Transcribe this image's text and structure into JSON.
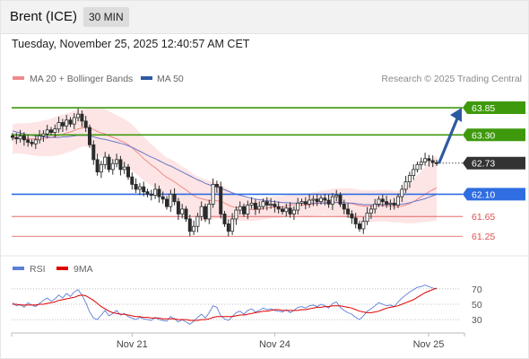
{
  "header": {
    "instrument": "Brent (ICE)",
    "period": "30 MIN"
  },
  "timestamp": "Tuesday, November 25, 2025 12:40:57 AM CET",
  "copyright": "Research © 2025 Trading Central",
  "colors": {
    "support_resistance_green": "#3e9a0c",
    "support_blue": "#2f6de0",
    "level_red": "#e05050",
    "price_tag": "#333333",
    "arrow": "#2e5aa0",
    "bollinger_fill": "#fde0e0",
    "ma20": "#f08a8a",
    "ma50": "#6a78c8",
    "rsi": "#5b7fd6",
    "rsi_ma": "#e00000"
  },
  "chart_data": [
    {
      "type": "candlestick",
      "title": "",
      "legend": [
        {
          "name": "MA 20 + Bollinger Bands",
          "color": "#f08a8a"
        },
        {
          "name": "MA 50",
          "color": "#2e5aa0"
        }
      ],
      "x_tick_labels": [
        "Nov 21",
        "Nov 24",
        "Nov 25"
      ],
      "ylim": [
        61.0,
        64.05
      ],
      "levels": [
        {
          "label": "63.85",
          "value": 63.85,
          "kind": "resistance"
        },
        {
          "label": "63.30",
          "value": 63.3,
          "kind": "resistance"
        },
        {
          "label": "62.73",
          "value": 62.73,
          "kind": "last"
        },
        {
          "label": "62.10",
          "value": 62.1,
          "kind": "pivot"
        },
        {
          "label": "61.65",
          "value": 61.65,
          "kind": "support"
        },
        {
          "label": "61.25",
          "value": 61.25,
          "kind": "support"
        }
      ],
      "close": [
        63.25,
        63.22,
        63.28,
        63.2,
        63.15,
        63.12,
        63.2,
        63.28,
        63.32,
        63.4,
        63.35,
        63.42,
        63.55,
        63.48,
        63.6,
        63.52,
        63.65,
        63.72,
        63.58,
        63.45,
        63.1,
        62.8,
        62.55,
        62.7,
        62.85,
        62.6,
        62.72,
        62.8,
        62.6,
        62.65,
        62.45,
        62.3,
        62.2,
        62.25,
        62.15,
        62.1,
        62.08,
        62.2,
        62.05,
        62.0,
        61.85,
        62.1,
        61.95,
        61.7,
        61.8,
        61.6,
        61.35,
        61.45,
        61.65,
        61.85,
        61.6,
        61.9,
        62.3,
        62.25,
        61.7,
        61.5,
        61.35,
        61.6,
        61.78,
        61.85,
        61.7,
        61.88,
        61.92,
        61.8,
        61.85,
        61.95,
        61.88,
        61.9,
        61.85,
        61.8,
        61.75,
        61.82,
        61.7,
        61.78,
        61.92,
        61.95,
        61.9,
        61.98,
        62.0,
        61.95,
        62.02,
        61.98,
        61.9,
        62.05,
        62.08,
        61.9,
        61.8,
        61.7,
        61.62,
        61.5,
        61.4,
        61.55,
        61.72,
        61.8,
        61.9,
        62.0,
        61.95,
        61.9,
        61.92,
        61.88,
        62.05,
        62.2,
        62.35,
        62.48,
        62.6,
        62.7,
        62.75,
        62.82,
        62.78,
        62.74,
        62.73
      ],
      "ma20": [
        63.22,
        63.23,
        63.23,
        63.23,
        63.22,
        63.22,
        63.22,
        63.22,
        63.23,
        63.24,
        63.25,
        63.27,
        63.29,
        63.31,
        63.34,
        63.36,
        63.39,
        63.42,
        63.44,
        63.45,
        63.44,
        63.41,
        63.37,
        63.34,
        63.32,
        63.28,
        63.25,
        63.22,
        63.18,
        63.15,
        63.1,
        63.04,
        62.97,
        62.9,
        62.82,
        62.76,
        62.69,
        62.64,
        62.57,
        62.5,
        62.44,
        62.4,
        62.35,
        62.29,
        62.24,
        62.19,
        62.13,
        62.07,
        62.03,
        62.01,
        61.99,
        61.97,
        61.97,
        61.97,
        61.95,
        61.92,
        61.88,
        61.85,
        61.83,
        61.82,
        61.81,
        61.8,
        61.79,
        61.79,
        61.79,
        61.81,
        61.82,
        61.83,
        61.84,
        61.84,
        61.84,
        61.86,
        61.88,
        61.89,
        61.89,
        61.88,
        61.88,
        61.89,
        61.9,
        61.91,
        61.92,
        61.93,
        61.93,
        61.94,
        61.94,
        61.94,
        61.93,
        61.92,
        61.91,
        61.89,
        61.87,
        61.86,
        61.86,
        61.86,
        61.86,
        61.87,
        61.87,
        61.87,
        61.86,
        61.85,
        61.85,
        61.86,
        61.88,
        61.91,
        61.95,
        62.0,
        62.05,
        62.1,
        62.15,
        62.19,
        62.23
      ],
      "ma50": [
        63.38,
        63.36,
        63.34,
        63.32,
        63.3,
        63.29,
        63.28,
        63.27,
        63.26,
        63.26,
        63.25,
        63.25,
        63.25,
        63.26,
        63.26,
        63.27,
        63.28,
        63.29,
        63.29,
        63.29,
        63.28,
        63.26,
        63.24,
        63.22,
        63.21,
        63.19,
        63.17,
        63.15,
        63.13,
        63.11,
        63.08,
        63.05,
        63.01,
        62.97,
        62.93,
        62.89,
        62.85,
        62.82,
        62.78,
        62.74,
        62.7,
        62.67,
        62.63,
        62.59,
        62.55,
        62.51,
        62.47,
        62.43,
        62.39,
        62.36,
        62.32,
        62.29,
        62.27,
        62.25,
        62.22,
        62.19,
        62.16,
        62.13,
        62.1,
        62.08,
        62.06,
        62.04,
        62.02,
        62.0,
        61.99,
        61.98,
        61.97,
        61.96,
        61.95,
        61.94,
        61.93,
        61.93,
        61.92,
        61.92,
        61.92,
        61.92,
        61.92,
        61.92,
        61.92,
        61.92,
        61.92,
        61.92,
        61.92,
        61.93,
        61.93,
        61.93,
        61.93,
        61.92,
        61.92,
        61.91,
        61.9,
        61.89,
        61.89,
        61.89,
        61.89,
        61.89,
        61.89,
        61.89,
        61.89,
        61.89,
        61.89,
        61.9,
        61.91,
        61.93,
        61.95,
        61.97,
        61.99,
        62.01,
        62.04,
        62.07,
        62.1
      ],
      "band_halfwidth": [
        0.3,
        0.3,
        0.31,
        0.31,
        0.32,
        0.33,
        0.34,
        0.35,
        0.36,
        0.37,
        0.38,
        0.39,
        0.4,
        0.4,
        0.4,
        0.4,
        0.4,
        0.39,
        0.38,
        0.38,
        0.4,
        0.44,
        0.48,
        0.5,
        0.5,
        0.5,
        0.49,
        0.48,
        0.48,
        0.47,
        0.47,
        0.47,
        0.46,
        0.45,
        0.44,
        0.43,
        0.42,
        0.41,
        0.4,
        0.4,
        0.4,
        0.41,
        0.42,
        0.42,
        0.42,
        0.43,
        0.43,
        0.43,
        0.43,
        0.42,
        0.41,
        0.4,
        0.38,
        0.36,
        0.34,
        0.33,
        0.32,
        0.3,
        0.28,
        0.26,
        0.25,
        0.24,
        0.23,
        0.22,
        0.22,
        0.22,
        0.22,
        0.22,
        0.22,
        0.22,
        0.22,
        0.22,
        0.22,
        0.22,
        0.22,
        0.22,
        0.23,
        0.23,
        0.24,
        0.24,
        0.25,
        0.25,
        0.26,
        0.27,
        0.28,
        0.28,
        0.29,
        0.3,
        0.31,
        0.31,
        0.32,
        0.32,
        0.32,
        0.32,
        0.32,
        0.32,
        0.32,
        0.32,
        0.32,
        0.32,
        0.32,
        0.34,
        0.37,
        0.4,
        0.44,
        0.48,
        0.52,
        0.56,
        0.6,
        0.63,
        0.66
      ]
    },
    {
      "type": "line",
      "title": "",
      "legend": [
        {
          "name": "RSI",
          "color": "#5b7fd6"
        },
        {
          "name": "9MA",
          "color": "#e00000"
        }
      ],
      "y_tick_labels": [
        "70",
        "50",
        "30"
      ],
      "ylim": [
        15,
        85
      ],
      "rsi": [
        52,
        48,
        50,
        46,
        52,
        49,
        47,
        51,
        55,
        58,
        54,
        57,
        62,
        58,
        64,
        60,
        66,
        69,
        62,
        52,
        40,
        32,
        30,
        36,
        42,
        35,
        38,
        42,
        36,
        38,
        34,
        32,
        30,
        33,
        31,
        30,
        29,
        33,
        30,
        29,
        28,
        34,
        31,
        27,
        30,
        27,
        24,
        28,
        33,
        37,
        32,
        39,
        48,
        46,
        35,
        31,
        29,
        34,
        39,
        41,
        37,
        42,
        44,
        40,
        42,
        45,
        43,
        44,
        42,
        41,
        40,
        43,
        39,
        42,
        46,
        47,
        45,
        48,
        49,
        47,
        50,
        48,
        45,
        51,
        53,
        46,
        42,
        39,
        37,
        33,
        30,
        35,
        41,
        44,
        48,
        52,
        50,
        48,
        49,
        47,
        53,
        58,
        62,
        66,
        69,
        72,
        73,
        75,
        73,
        71,
        70
      ],
      "rsi_ma": [
        50,
        50,
        49,
        49,
        49,
        49,
        49,
        50,
        50,
        51,
        52,
        53,
        55,
        56,
        57,
        58,
        59,
        61,
        62,
        61,
        58,
        55,
        51,
        47,
        44,
        41,
        39,
        38,
        37,
        37,
        36,
        35,
        34,
        34,
        33,
        33,
        32,
        32,
        32,
        31,
        31,
        31,
        31,
        30,
        30,
        30,
        29,
        29,
        29,
        30,
        30,
        31,
        33,
        34,
        34,
        34,
        34,
        34,
        35,
        36,
        36,
        37,
        38,
        39,
        40,
        41,
        41,
        42,
        43,
        43,
        42,
        42,
        42,
        42,
        42,
        43,
        43,
        44,
        45,
        46,
        46,
        47,
        47,
        48,
        48,
        48,
        47,
        46,
        45,
        43,
        41,
        40,
        39,
        39,
        40,
        41,
        43,
        45,
        46,
        47,
        48,
        50,
        52,
        54,
        56,
        59,
        62,
        65,
        67,
        69,
        71
      ]
    }
  ]
}
